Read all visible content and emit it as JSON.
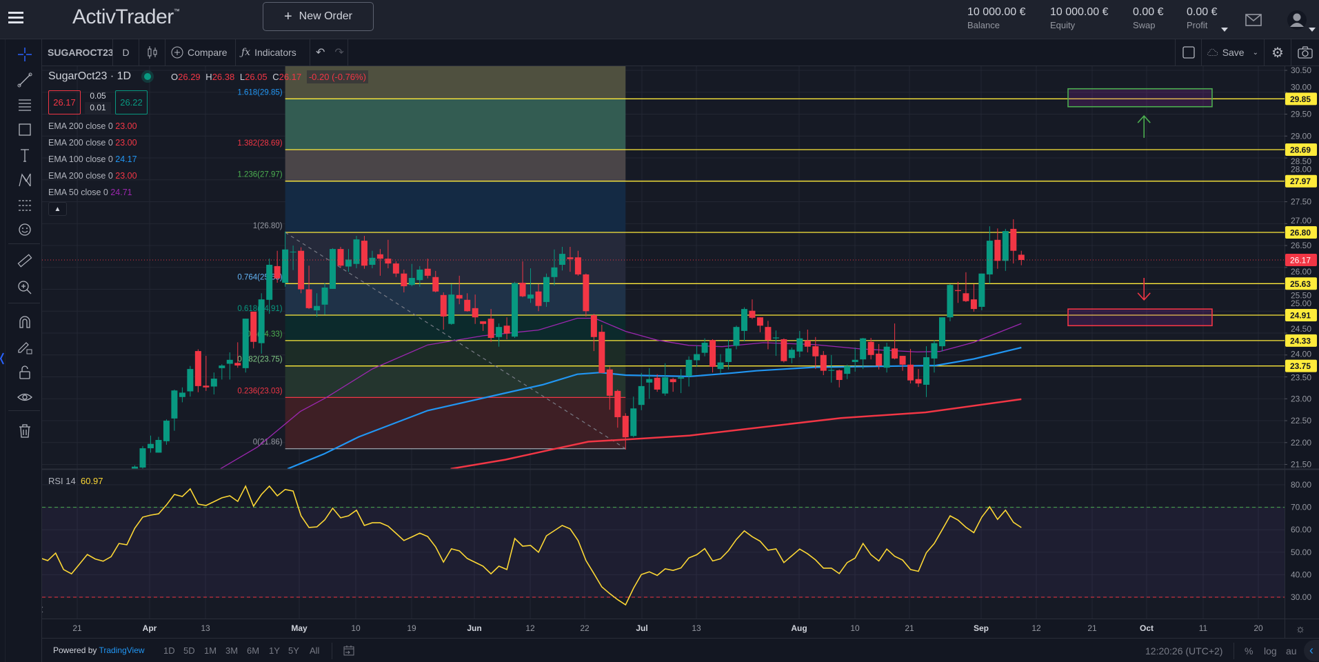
{
  "header": {
    "logo": "ActivTrader",
    "logo_tm": "™",
    "new_order_label": "New Order",
    "new_order_icon": "plus-icon",
    "account": [
      {
        "value": "10 000.00 €",
        "label": "Balance"
      },
      {
        "value": "10 000.00 €",
        "label": "Equity"
      },
      {
        "value": "0.00 €",
        "label": "Swap"
      },
      {
        "value": "0.00 €",
        "label": "Profit"
      }
    ],
    "icons": [
      "menu-icon",
      "mail-icon",
      "user-avatar-icon"
    ]
  },
  "chart_toolbar": {
    "symbol": "SUGAROCT23",
    "interval": "D",
    "compare": "Compare",
    "indicators": "Indicators",
    "save": "Save"
  },
  "legend": {
    "symbol": "SugarOct23",
    "separator": "·",
    "interval": "1D",
    "o_label": "O",
    "o": "26.29",
    "h_label": "H",
    "h": "26.38",
    "l_label": "L",
    "l": "26.05",
    "c_label": "C",
    "c": "26.17",
    "change": "-0.20 (-0.76%)",
    "sell_price": "26.17",
    "buy_price": "26.22",
    "spread_top": "0.05",
    "spread_bottom": "0.01",
    "indicators": [
      {
        "name": "EMA 200 close 0",
        "value": "23.00",
        "color": "#f23645"
      },
      {
        "name": "EMA 200 close 0",
        "value": "23.00",
        "color": "#f23645"
      },
      {
        "name": "EMA 100 close 0",
        "value": "24.17",
        "color": "#2196f3"
      },
      {
        "name": "EMA 200 close 0",
        "value": "23.00",
        "color": "#f23645"
      },
      {
        "name": "EMA 50 close 0",
        "value": "24.71",
        "color": "#9c27b0"
      }
    ]
  },
  "rsi_legend": {
    "name": "RSI 14",
    "value": "60.97"
  },
  "colors": {
    "up": "#089981",
    "down": "#f23645",
    "fib_line": "#ffeb3b",
    "ema50": "#9c27b0",
    "ema100": "#2196f3",
    "ema200": "#f23645",
    "rsi": "#fdd835",
    "background": "#131722"
  },
  "chart_data": {
    "type": "candlestick",
    "price_ticks": [
      "30.50",
      "30.00",
      "29.50",
      "29.00",
      "28.50",
      "28.00",
      "27.50",
      "27.00",
      "26.50",
      "26.00",
      "25.50",
      "25.00",
      "24.50",
      "24.00",
      "23.50",
      "23.00",
      "22.50",
      "22.00",
      "21.50"
    ],
    "rsi_ticks": [
      "80.00",
      "70.00",
      "60.00",
      "50.00",
      "40.00",
      "30.00"
    ],
    "rsi_levels": {
      "upper": 70,
      "lower": 30
    },
    "last_price": "26.17",
    "time_labels": [
      {
        "t": "21",
        "month": false
      },
      {
        "t": "Apr",
        "month": true
      },
      {
        "t": "13",
        "month": false
      },
      {
        "t": "May",
        "month": true
      },
      {
        "t": "10",
        "month": false
      },
      {
        "t": "19",
        "month": false
      },
      {
        "t": "Jun",
        "month": true
      },
      {
        "t": "12",
        "month": false
      },
      {
        "t": "22",
        "month": false
      },
      {
        "t": "Jul",
        "month": true
      },
      {
        "t": "13",
        "month": false
      },
      {
        "t": "Aug",
        "month": true
      },
      {
        "t": "10",
        "month": false
      },
      {
        "t": "21",
        "month": false
      },
      {
        "t": "Sep",
        "month": true
      },
      {
        "t": "12",
        "month": false
      },
      {
        "t": "21",
        "month": false
      },
      {
        "t": "Oct",
        "month": true
      },
      {
        "t": "11",
        "month": false
      },
      {
        "t": "20",
        "month": false
      }
    ],
    "fib_levels": [
      {
        "ratio": "1.618",
        "price": 29.85,
        "color": "#2196f3",
        "band": "#4f503f",
        "axis_label": true
      },
      {
        "ratio": "1.382",
        "price": 28.69,
        "color": "#f23645",
        "band": "#335c52",
        "axis_label": true
      },
      {
        "ratio": "1.236",
        "price": 27.97,
        "color": "#4caf50",
        "band": "#4a4548",
        "axis_label": true
      },
      {
        "ratio": "1",
        "price": 26.8,
        "color": "#9598a1",
        "band": "#142a44",
        "axis_label": true
      },
      {
        "ratio": "0.764",
        "price": 25.63,
        "color": "#64b5f6",
        "band": "#25293a",
        "axis_label": true
      },
      {
        "ratio": "0.618",
        "price": 24.91,
        "color": "#089981",
        "band": "#1f3248",
        "axis_label": true
      },
      {
        "ratio": "0.5",
        "price": 24.33,
        "color": "#4caf50",
        "band": "#0c2a2c",
        "axis_label": true
      },
      {
        "ratio": "0.382",
        "price": 23.75,
        "color": "#81c784",
        "band": "#1c2c26",
        "axis_label": true
      },
      {
        "ratio": "0.236",
        "price": 23.03,
        "color": "#f23645",
        "band": "#24352e",
        "axis_label": false
      },
      {
        "ratio": "0",
        "price": 21.86,
        "color": "#9598a1",
        "band": "#3e1f25",
        "axis_label": false
      }
    ],
    "candles": [
      null,
      null,
      null,
      null,
      null,
      null,
      null,
      null,
      null,
      null,
      null,
      null,
      [
        21.35,
        21.48,
        21.28,
        21.45
      ],
      [
        21.43,
        21.92,
        21.4,
        21.87
      ],
      [
        21.87,
        22.16,
        21.77,
        21.97
      ],
      [
        21.77,
        22.13,
        21.77,
        22.06
      ],
      [
        22.03,
        22.53,
        21.95,
        22.5
      ],
      [
        22.55,
        23.21,
        22.27,
        23.19
      ],
      [
        23.04,
        23.26,
        22.92,
        23.14
      ],
      [
        23.17,
        23.75,
        23.05,
        23.68
      ],
      [
        24.09,
        24.13,
        23.15,
        23.29
      ],
      [
        23.3,
        23.98,
        23.18,
        23.26
      ],
      [
        23.28,
        23.6,
        23.1,
        23.46
      ],
      [
        23.7,
        23.79,
        23.44,
        23.76
      ],
      [
        23.8,
        24.06,
        23.44,
        23.89
      ],
      [
        23.82,
        24.29,
        23.71,
        23.76
      ],
      [
        23.7,
        24.83,
        23.6,
        24.83
      ],
      [
        24.99,
        24.99,
        24.15,
        24.3
      ],
      [
        24.27,
        25.41,
        24.03,
        25.27
      ],
      [
        25.26,
        26.2,
        24.94,
        26.06
      ],
      [
        26.03,
        26.38,
        25.65,
        25.75
      ],
      [
        25.65,
        26.82,
        25.56,
        26.41
      ],
      [
        26.35,
        26.5,
        25.94,
        26.36
      ],
      [
        26.38,
        26.46,
        25.41,
        25.5
      ],
      [
        25.5,
        26.04,
        25.05,
        25.07
      ],
      [
        25.02,
        25.41,
        24.87,
        25.12
      ],
      [
        25.15,
        25.64,
        24.92,
        25.54
      ],
      [
        25.51,
        26.44,
        25.51,
        26.42
      ],
      [
        26.42,
        26.47,
        25.99,
        26.04
      ],
      [
        26.02,
        26.42,
        25.9,
        26.18
      ],
      [
        26.08,
        26.72,
        25.98,
        26.64
      ],
      [
        26.61,
        26.72,
        25.97,
        26.04
      ],
      [
        26.06,
        26.38,
        25.98,
        26.22
      ],
      [
        26.3,
        26.42,
        25.81,
        26.2
      ],
      [
        26.2,
        26.63,
        25.98,
        26.09
      ],
      [
        26.09,
        26.14,
        25.78,
        25.86
      ],
      [
        25.86,
        25.95,
        25.43,
        25.57
      ],
      [
        25.6,
        26.08,
        25.57,
        25.76
      ],
      [
        25.71,
        26.03,
        25.56,
        25.95
      ],
      [
        25.97,
        26.2,
        25.75,
        25.81
      ],
      [
        25.78,
        25.92,
        25.43,
        25.45
      ],
      [
        25.37,
        25.43,
        24.58,
        24.88
      ],
      [
        24.71,
        25.62,
        24.69,
        25.38
      ],
      [
        25.37,
        25.81,
        25.16,
        25.29
      ],
      [
        25.26,
        25.41,
        24.99,
        25.0
      ],
      [
        25.07,
        25.38,
        24.71,
        24.86
      ],
      [
        24.77,
        24.77,
        24.55,
        24.71
      ],
      [
        24.83,
        25.05,
        24.3,
        24.39
      ],
      [
        24.41,
        24.72,
        24.19,
        24.64
      ],
      [
        24.67,
        24.86,
        24.36,
        24.49
      ],
      [
        24.42,
        25.67,
        24.39,
        25.64
      ],
      [
        25.65,
        26.14,
        25.32,
        25.34
      ],
      [
        25.29,
        25.98,
        25.19,
        25.38
      ],
      [
        25.45,
        25.62,
        25.0,
        25.12
      ],
      [
        25.21,
        25.86,
        25.1,
        25.78
      ],
      [
        25.78,
        26.41,
        25.59,
        26.0
      ],
      [
        26.06,
        26.47,
        25.93,
        26.31
      ],
      [
        26.23,
        26.47,
        25.9,
        26.19
      ],
      [
        26.23,
        26.38,
        25.81,
        25.84
      ],
      [
        25.84,
        25.86,
        24.88,
        25.0
      ],
      [
        24.91,
        24.94,
        24.09,
        24.41
      ],
      [
        24.53,
        24.69,
        23.59,
        23.59
      ],
      [
        23.67,
        23.73,
        22.75,
        23.07
      ],
      [
        23.18,
        23.21,
        22.34,
        22.58
      ],
      [
        22.61,
        22.67,
        21.84,
        22.12
      ],
      [
        22.15,
        23.05,
        22.12,
        22.78
      ],
      [
        22.86,
        23.59,
        22.74,
        23.29
      ],
      [
        23.37,
        23.7,
        23.0,
        23.45
      ],
      [
        23.48,
        23.56,
        23.16,
        23.21
      ],
      [
        23.12,
        23.81,
        23.07,
        23.49
      ],
      [
        23.45,
        23.48,
        23.16,
        23.38
      ],
      [
        23.46,
        23.68,
        23.13,
        23.49
      ],
      [
        23.52,
        23.97,
        23.28,
        23.89
      ],
      [
        23.88,
        24.22,
        23.73,
        24.02
      ],
      [
        24.05,
        24.38,
        23.97,
        24.28
      ],
      [
        24.34,
        24.36,
        23.6,
        23.73
      ],
      [
        23.68,
        24.02,
        23.58,
        23.83
      ],
      [
        23.84,
        24.34,
        23.67,
        24.15
      ],
      [
        24.21,
        24.67,
        24.13,
        24.64
      ],
      [
        24.55,
        25.09,
        24.31,
        25.05
      ],
      [
        25.01,
        25.27,
        24.82,
        24.85
      ],
      [
        24.86,
        24.86,
        24.52,
        24.67
      ],
      [
        24.64,
        24.78,
        24.13,
        24.34
      ],
      [
        24.38,
        24.56,
        23.98,
        24.4
      ],
      [
        24.36,
        24.38,
        23.83,
        23.86
      ],
      [
        23.93,
        24.17,
        23.81,
        24.12
      ],
      [
        24.08,
        24.55,
        23.95,
        24.38
      ],
      [
        24.33,
        24.58,
        24.06,
        24.19
      ],
      [
        24.2,
        24.41,
        23.68,
        23.97
      ],
      [
        24.0,
        24.09,
        23.54,
        23.64
      ],
      [
        23.64,
        24.0,
        23.37,
        23.66
      ],
      [
        23.65,
        23.67,
        23.26,
        23.43
      ],
      [
        23.57,
        23.78,
        23.45,
        23.75
      ],
      [
        23.84,
        24.17,
        23.62,
        23.89
      ],
      [
        23.9,
        24.39,
        23.68,
        24.38
      ],
      [
        24.3,
        24.39,
        23.9,
        24.0
      ],
      [
        24.03,
        24.25,
        23.67,
        23.76
      ],
      [
        23.71,
        24.28,
        23.6,
        24.19
      ],
      [
        24.15,
        24.72,
        23.9,
        23.92
      ],
      [
        23.98,
        23.98,
        23.64,
        23.78
      ],
      [
        23.78,
        24.14,
        23.35,
        23.42
      ],
      [
        23.45,
        23.68,
        23.27,
        23.35
      ],
      [
        23.32,
        24.2,
        23.04,
        23.95
      ],
      [
        23.92,
        24.34,
        23.6,
        24.27
      ],
      [
        24.2,
        24.86,
        24.08,
        24.86
      ],
      [
        24.86,
        25.62,
        24.77,
        25.6
      ],
      [
        25.48,
        25.67,
        25.19,
        25.46
      ],
      [
        25.41,
        25.89,
        25.21,
        25.23
      ],
      [
        25.27,
        25.62,
        24.99,
        25.05
      ],
      [
        25.1,
        25.86,
        25.02,
        25.86
      ],
      [
        25.84,
        26.94,
        25.63,
        26.61
      ],
      [
        26.63,
        26.89,
        25.97,
        26.15
      ],
      [
        26.15,
        26.88,
        25.92,
        26.83
      ],
      [
        26.88,
        27.1,
        26.09,
        26.38
      ],
      [
        26.29,
        26.38,
        26.05,
        26.17
      ]
    ],
    "ema50": [
      [
        22.8,
        21.4
      ],
      [
        27.5,
        21.9
      ],
      [
        32.9,
        22.71
      ],
      [
        36.2,
        23.03
      ],
      [
        42,
        23.68
      ],
      [
        49,
        24.23
      ],
      [
        56,
        24.44
      ],
      [
        63,
        24.57
      ],
      [
        67.9,
        24.84
      ],
      [
        70.1,
        24.84
      ],
      [
        74,
        24.54
      ],
      [
        78,
        24.34
      ],
      [
        82,
        24.22
      ],
      [
        86.2,
        24.19
      ],
      [
        91.4,
        24.28
      ],
      [
        97.8,
        24.24
      ],
      [
        103.6,
        24.14
      ],
      [
        110.8,
        24.07
      ],
      [
        113.7,
        24.08
      ],
      [
        118,
        24.29
      ],
      [
        124,
        24.72
      ]
    ],
    "ema100": [
      [
        31.3,
        21.4
      ],
      [
        35.9,
        21.74
      ],
      [
        40.3,
        22.13
      ],
      [
        49,
        22.73
      ],
      [
        58.8,
        23.13
      ],
      [
        63.5,
        23.32
      ],
      [
        67.9,
        23.56
      ],
      [
        70.8,
        23.6
      ],
      [
        74,
        23.54
      ],
      [
        82.1,
        23.51
      ],
      [
        87.6,
        23.59
      ],
      [
        90.5,
        23.64
      ],
      [
        97.8,
        23.72
      ],
      [
        109.3,
        23.75
      ],
      [
        113.2,
        23.76
      ],
      [
        118,
        23.91
      ],
      [
        124,
        24.17
      ]
    ],
    "ema200": [
      [
        51.9,
        21.4
      ],
      [
        58.8,
        21.61
      ],
      [
        64.9,
        21.85
      ],
      [
        69.3,
        22.02
      ],
      [
        74,
        22.07
      ],
      [
        82.1,
        22.16
      ],
      [
        101.2,
        22.56
      ],
      [
        111.9,
        22.69
      ],
      [
        124,
        22.99
      ]
    ],
    "rsi": [
      47.5,
      46.3,
      49.6,
      42.3,
      40.4,
      44.7,
      49,
      47,
      46,
      48,
      53.9,
      53.3,
      60.7,
      65.6,
      66.5,
      67.1,
      71,
      75.7,
      74.8,
      78.2,
      71.4,
      70.8,
      72.5,
      74.2,
      75.1,
      72.6,
      79.4,
      70.5,
      75.7,
      79.4,
      75.1,
      77.9,
      77.2,
      66.2,
      61,
      61.3,
      64.4,
      69.6,
      65.3,
      66.2,
      68.7,
      61.9,
      63.1,
      63.1,
      61.6,
      58.4,
      55.2,
      56.8,
      58.5,
      57,
      52.4,
      45.6,
      51.5,
      50.6,
      47.2,
      45.5,
      43.8,
      40.4,
      43.8,
      42.3,
      56.1,
      52.7,
      53,
      50,
      57.3,
      59.6,
      61.9,
      60.4,
      55.2,
      46.3,
      40.5,
      34.6,
      31.6,
      28.9,
      26.6,
      34,
      40.1,
      41.3,
      39.7,
      42.6,
      41.9,
      43,
      47.5,
      48.9,
      51.6,
      46.1,
      47.1,
      50.7,
      55.7,
      59.5,
      56.9,
      54.9,
      50.9,
      51.5,
      45.4,
      48.4,
      51.4,
      49.3,
      46.6,
      42.9,
      42.9,
      40.5,
      45.4,
      47.4,
      53.9,
      48.9,
      46.1,
      51.4,
      48.2,
      46.5,
      42.3,
      41.5,
      49.8,
      53.9,
      60,
      66.2,
      64.3,
      61.1,
      58.7,
      65.6,
      70.2,
      64.6,
      68.7,
      63.3,
      60.97
    ]
  },
  "bottom": {
    "powered_by": "Powered by ",
    "tradingview": "TradingView",
    "ranges": [
      "1D",
      "5D",
      "1M",
      "3M",
      "6M",
      "1Y",
      "5Y",
      "All"
    ],
    "time": "12:20:26 (UTC+2)",
    "percent": "%",
    "log": "log",
    "auto": "au"
  }
}
